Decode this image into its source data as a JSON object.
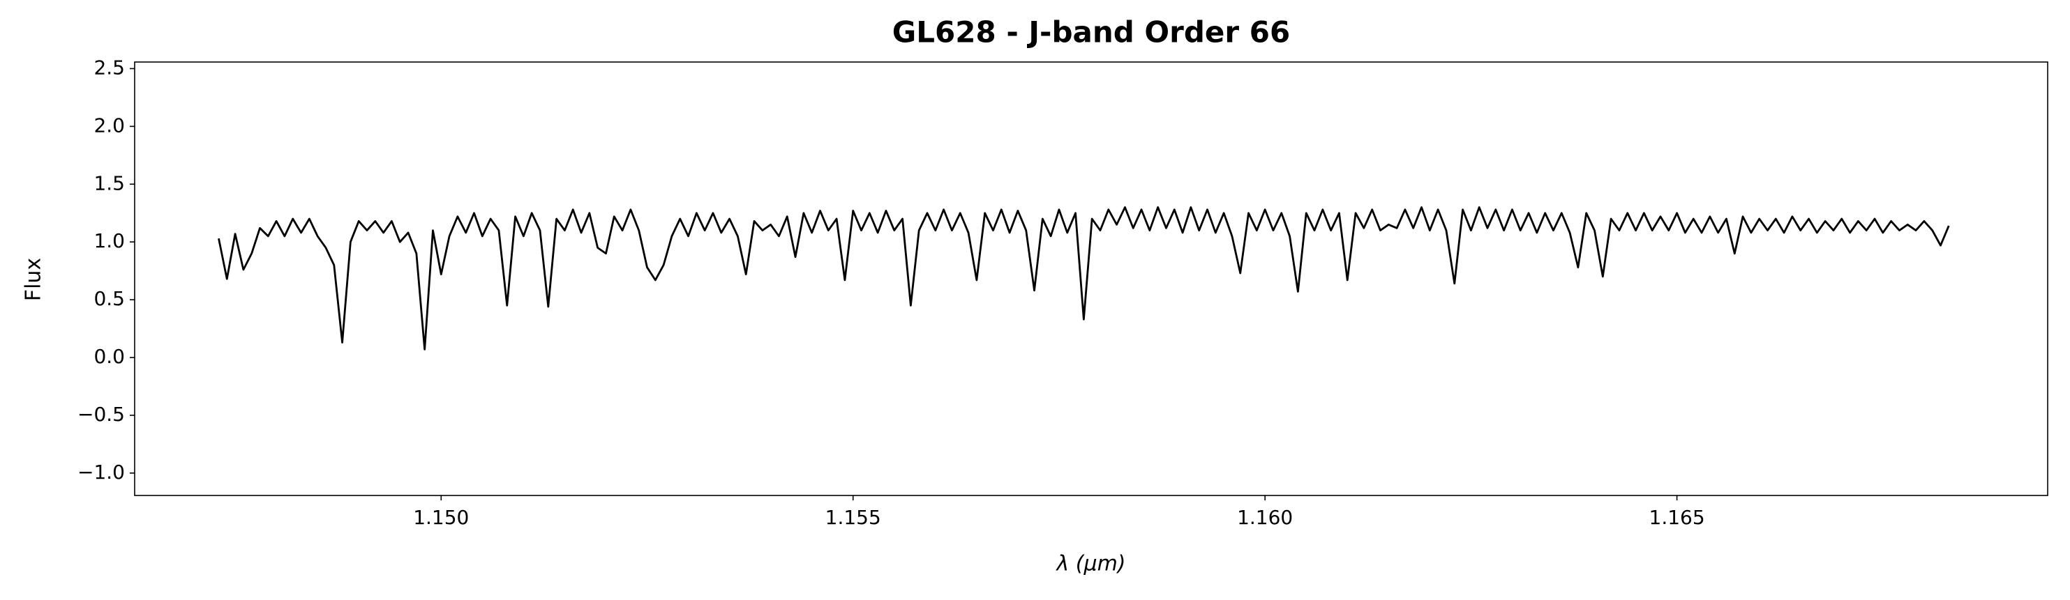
{
  "chart_data": {
    "type": "line",
    "title": "GL628 - J-band Order 66",
    "x_label": "λ (μm)",
    "y_label": "Flux",
    "x": [
      1.1473,
      1.1474,
      1.1475,
      1.1476,
      1.1477,
      1.1478,
      1.1479,
      1.148,
      1.1481,
      1.1482,
      1.1483,
      1.1484,
      1.1485,
      1.1486,
      1.1487,
      1.1488,
      1.1489,
      1.149,
      1.1491,
      1.1492,
      1.1493,
      1.1494,
      1.1495,
      1.1496,
      1.1497,
      1.1498,
      1.1499,
      1.15,
      1.1501,
      1.1502,
      1.1503,
      1.1504,
      1.1505,
      1.1506,
      1.1507,
      1.1508,
      1.1509,
      1.151,
      1.1511,
      1.1512,
      1.1513,
      1.1514,
      1.1515,
      1.1516,
      1.1517,
      1.1518,
      1.1519,
      1.152,
      1.1521,
      1.1522,
      1.1523,
      1.1524,
      1.1525,
      1.1526,
      1.1527,
      1.1528,
      1.1529,
      1.153,
      1.1531,
      1.1532,
      1.1533,
      1.1534,
      1.1535,
      1.1536,
      1.1537,
      1.1538,
      1.1539,
      1.154,
      1.1541,
      1.1542,
      1.1543,
      1.1544,
      1.1545,
      1.1546,
      1.1547,
      1.1548,
      1.1549,
      1.155,
      1.1551,
      1.1552,
      1.1553,
      1.1554,
      1.1555,
      1.1556,
      1.1557,
      1.1558,
      1.1559,
      1.156,
      1.1561,
      1.1562,
      1.1563,
      1.1564,
      1.1565,
      1.1566,
      1.1567,
      1.1568,
      1.1569,
      1.157,
      1.1571,
      1.1572,
      1.1573,
      1.1574,
      1.1575,
      1.1576,
      1.1577,
      1.1578,
      1.1579,
      1.158,
      1.1581,
      1.1582,
      1.1583,
      1.1584,
      1.1585,
      1.1586,
      1.1587,
      1.1588,
      1.1589,
      1.159,
      1.1591,
      1.1592,
      1.1593,
      1.1594,
      1.1595,
      1.1596,
      1.1597,
      1.1598,
      1.1599,
      1.16,
      1.1601,
      1.1602,
      1.1603,
      1.1604,
      1.1605,
      1.1606,
      1.1607,
      1.1608,
      1.1609,
      1.161,
      1.1611,
      1.1612,
      1.1613,
      1.1614,
      1.1615,
      1.1616,
      1.1617,
      1.1618,
      1.1619,
      1.162,
      1.1621,
      1.1622,
      1.1623,
      1.1624,
      1.1625,
      1.1626,
      1.1627,
      1.1628,
      1.1629,
      1.163,
      1.1631,
      1.1632,
      1.1633,
      1.1634,
      1.1635,
      1.1636,
      1.1637,
      1.1638,
      1.1639,
      1.164,
      1.1641,
      1.1642,
      1.1643,
      1.1644,
      1.1645,
      1.1646,
      1.1647,
      1.1648,
      1.1649,
      1.165,
      1.1651,
      1.1652,
      1.1653,
      1.1654,
      1.1655,
      1.1656,
      1.1657,
      1.1658,
      1.1659,
      1.166,
      1.1661,
      1.1662,
      1.1663,
      1.1664,
      1.1665,
      1.1666,
      1.1667,
      1.1668,
      1.1669,
      1.167,
      1.1671,
      1.1672,
      1.1673,
      1.1674,
      1.1675,
      1.1676,
      1.1677,
      1.1678,
      1.1679,
      1.168,
      1.1681,
      1.1682,
      1.1683
    ],
    "series": [
      {
        "color": "#000000",
        "values": [
          1.03,
          0.68,
          1.07,
          0.76,
          0.9,
          1.12,
          1.05,
          1.18,
          1.05,
          1.2,
          1.08,
          1.2,
          1.05,
          0.95,
          0.8,
          0.13,
          1.0,
          1.18,
          1.1,
          1.18,
          1.08,
          1.18,
          1.0,
          1.08,
          0.9,
          0.07,
          1.1,
          0.72,
          1.05,
          1.22,
          1.08,
          1.25,
          1.05,
          1.2,
          1.1,
          0.45,
          1.22,
          1.05,
          1.25,
          1.1,
          0.44,
          1.2,
          1.1,
          1.28,
          1.08,
          1.25,
          0.95,
          0.9,
          1.22,
          1.1,
          1.28,
          1.1,
          0.78,
          0.67,
          0.8,
          1.05,
          1.2,
          1.05,
          1.25,
          1.1,
          1.25,
          1.08,
          1.2,
          1.05,
          0.72,
          1.18,
          1.1,
          1.15,
          1.05,
          1.22,
          0.87,
          1.25,
          1.08,
          1.27,
          1.1,
          1.2,
          0.67,
          1.27,
          1.1,
          1.25,
          1.08,
          1.27,
          1.1,
          1.2,
          0.45,
          1.1,
          1.25,
          1.1,
          1.28,
          1.1,
          1.25,
          1.08,
          0.67,
          1.25,
          1.1,
          1.28,
          1.08,
          1.27,
          1.1,
          0.58,
          1.2,
          1.05,
          1.28,
          1.08,
          1.25,
          0.33,
          1.2,
          1.1,
          1.28,
          1.15,
          1.3,
          1.12,
          1.28,
          1.1,
          1.3,
          1.12,
          1.28,
          1.08,
          1.3,
          1.1,
          1.28,
          1.08,
          1.25,
          1.05,
          0.73,
          1.25,
          1.1,
          1.28,
          1.1,
          1.25,
          1.05,
          0.57,
          1.25,
          1.1,
          1.28,
          1.1,
          1.25,
          0.67,
          1.25,
          1.12,
          1.28,
          1.1,
          1.15,
          1.12,
          1.28,
          1.12,
          1.3,
          1.1,
          1.28,
          1.1,
          0.64,
          1.28,
          1.1,
          1.3,
          1.12,
          1.28,
          1.1,
          1.28,
          1.1,
          1.25,
          1.08,
          1.25,
          1.1,
          1.25,
          1.08,
          0.78,
          1.25,
          1.1,
          0.7,
          1.2,
          1.1,
          1.25,
          1.1,
          1.25,
          1.1,
          1.22,
          1.1,
          1.25,
          1.08,
          1.2,
          1.08,
          1.22,
          1.08,
          1.2,
          0.9,
          1.22,
          1.08,
          1.2,
          1.1,
          1.2,
          1.08,
          1.22,
          1.1,
          1.2,
          1.08,
          1.18,
          1.1,
          1.2,
          1.08,
          1.18,
          1.1,
          1.2,
          1.08,
          1.18,
          1.1,
          1.15,
          1.1,
          1.18,
          1.1,
          0.97,
          1.14
        ]
      }
    ],
    "xlim": [
      1.14628,
      1.1695
    ],
    "xticks": [
      {
        "value": 1.15,
        "label": "1.150"
      },
      {
        "value": 1.155,
        "label": "1.155"
      },
      {
        "value": 1.16,
        "label": "1.160"
      },
      {
        "value": 1.165,
        "label": "1.165"
      }
    ],
    "ylim": [
      -1.194,
      2.557
    ],
    "yticks": [
      {
        "value": -1.0,
        "label": "−1.0"
      },
      {
        "value": -0.5,
        "label": "−0.5"
      },
      {
        "value": 0.0,
        "label": "0.0"
      },
      0.5,
      {
        "value": 1.0,
        "label": "1.0"
      },
      1.5,
      {
        "value": 2.0,
        "label": "2.0"
      },
      2.5
    ],
    "grid": false
  }
}
